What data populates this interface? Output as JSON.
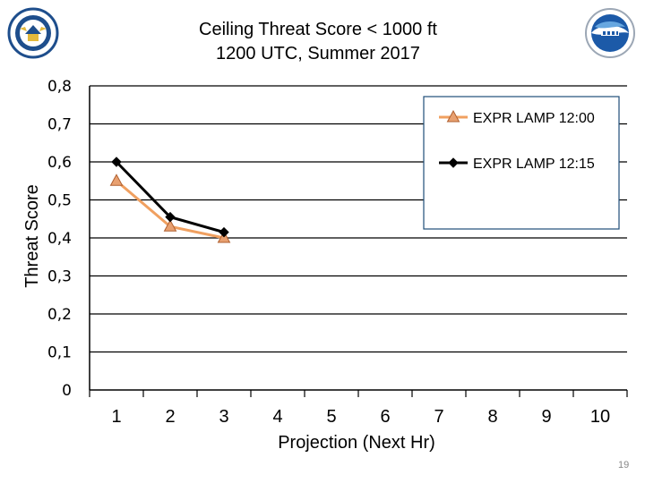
{
  "slide": {
    "title_line1": "Ceiling Threat Score < 1000 ft",
    "title_line2": "1200 UTC, Summer 2017",
    "page_number": "19"
  },
  "colors": {
    "series_1200": "#F0A060",
    "series_1200_marker": "#E8A070",
    "series_1215": "#000000",
    "seal_blue": "#1E4E8C",
    "noaa_blue": "#1C5AA8"
  },
  "icons": {
    "left_logo": "department-of-commerce-seal",
    "right_logo": "noaa-logo"
  },
  "chart_data": {
    "type": "line",
    "title": "Ceiling Threat Score < 1000 ft 1200 UTC, Summer 2017",
    "xlabel": "Projection (Next Hr)",
    "ylabel": "Threat Score",
    "categories": [
      "1",
      "2",
      "3",
      "4",
      "5",
      "6",
      "7",
      "8",
      "9",
      "10"
    ],
    "y_ticks": [
      "0",
      "0,1",
      "0,2",
      "0,3",
      "0,4",
      "0,5",
      "0,6",
      "0,7",
      "0,8"
    ],
    "ylim": [
      0,
      0.8
    ],
    "grid": true,
    "legend_position": "top-right",
    "series": [
      {
        "name": "EXPR LAMP 12:00",
        "marker": "triangle",
        "x": [
          1,
          2,
          3
        ],
        "values": [
          0.55,
          0.43,
          0.4
        ]
      },
      {
        "name": "EXPR LAMP 12:15",
        "marker": "diamond",
        "x": [
          1,
          2,
          3
        ],
        "values": [
          0.6,
          0.455,
          0.415
        ]
      }
    ]
  }
}
